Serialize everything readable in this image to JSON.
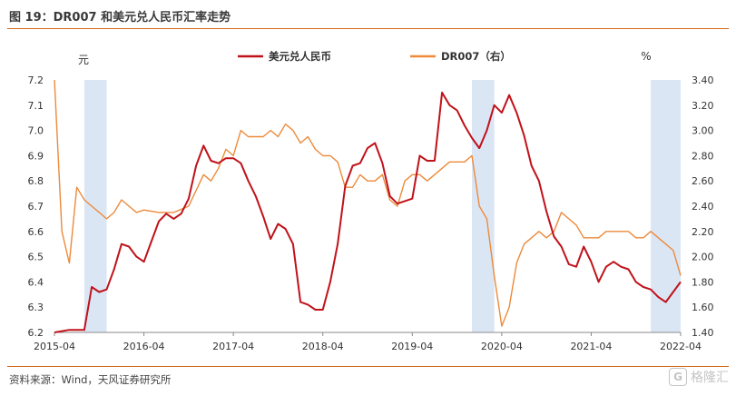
{
  "header": {
    "title": "图 19：DR007 和美元兑人民币汇率走势"
  },
  "footer": {
    "source": "资料来源：Wind，天风证券研究所",
    "watermark_text": "格隆汇",
    "watermark_badge": "G"
  },
  "chart_data": {
    "type": "line",
    "title": "",
    "left_unit": "元",
    "right_unit": "%",
    "ylim": [
      6.2,
      7.2
    ],
    "ylim_right": [
      1.4,
      3.4
    ],
    "yticks": [
      "7.2",
      "7.1",
      "7.0",
      "6.9",
      "6.8",
      "6.7",
      "6.6",
      "6.5",
      "6.4",
      "6.3",
      "6.2"
    ],
    "yticks_right": [
      "3.40",
      "3.20",
      "3.00",
      "2.80",
      "2.60",
      "2.40",
      "2.20",
      "2.00",
      "1.80",
      "1.60",
      "1.40"
    ],
    "x_ticks": [
      "2015-04",
      "2016-04",
      "2017-04",
      "2018-04",
      "2019-04",
      "2020-04",
      "2021-04",
      "2022-04"
    ],
    "x_range": [
      "2015-04",
      "2022-04"
    ],
    "shaded_periods": [
      [
        "2015-08",
        "2015-11"
      ],
      [
        "2019-12",
        "2020-03"
      ],
      [
        "2021-12",
        "2022-04"
      ]
    ],
    "legend_position": "top",
    "colors": {
      "usdcny": "#c0121a",
      "dr007": "#ed8a3a",
      "shade": "#dbe6f5",
      "rule": "#d46a1c"
    },
    "series": [
      {
        "name": "美元兑人民币",
        "axis": "left",
        "points": [
          [
            "2015-04",
            6.2
          ],
          [
            "2015-06",
            6.21
          ],
          [
            "2015-07",
            6.21
          ],
          [
            "2015-08",
            6.21
          ],
          [
            "2015-09",
            6.38
          ],
          [
            "2015-10",
            6.36
          ],
          [
            "2015-11",
            6.37
          ],
          [
            "2015-12",
            6.45
          ],
          [
            "2016-01",
            6.55
          ],
          [
            "2016-02",
            6.54
          ],
          [
            "2016-03",
            6.5
          ],
          [
            "2016-04",
            6.48
          ],
          [
            "2016-05",
            6.56
          ],
          [
            "2016-06",
            6.64
          ],
          [
            "2016-07",
            6.67
          ],
          [
            "2016-08",
            6.65
          ],
          [
            "2016-09",
            6.67
          ],
          [
            "2016-10",
            6.73
          ],
          [
            "2016-11",
            6.86
          ],
          [
            "2016-12",
            6.94
          ],
          [
            "2017-01",
            6.88
          ],
          [
            "2017-02",
            6.87
          ],
          [
            "2017-03",
            6.89
          ],
          [
            "2017-04",
            6.89
          ],
          [
            "2017-05",
            6.87
          ],
          [
            "2017-06",
            6.8
          ],
          [
            "2017-07",
            6.74
          ],
          [
            "2017-08",
            6.66
          ],
          [
            "2017-09",
            6.57
          ],
          [
            "2017-10",
            6.63
          ],
          [
            "2017-11",
            6.61
          ],
          [
            "2017-12",
            6.55
          ],
          [
            "2018-01",
            6.32
          ],
          [
            "2018-02",
            6.31
          ],
          [
            "2018-03",
            6.29
          ],
          [
            "2018-04",
            6.29
          ],
          [
            "2018-05",
            6.4
          ],
          [
            "2018-06",
            6.55
          ],
          [
            "2018-07",
            6.78
          ],
          [
            "2018-08",
            6.86
          ],
          [
            "2018-09",
            6.87
          ],
          [
            "2018-10",
            6.93
          ],
          [
            "2018-11",
            6.95
          ],
          [
            "2018-12",
            6.87
          ],
          [
            "2019-01",
            6.74
          ],
          [
            "2019-02",
            6.71
          ],
          [
            "2019-03",
            6.72
          ],
          [
            "2019-04",
            6.73
          ],
          [
            "2019-05",
            6.9
          ],
          [
            "2019-06",
            6.88
          ],
          [
            "2019-07",
            6.88
          ],
          [
            "2019-08",
            7.15
          ],
          [
            "2019-09",
            7.1
          ],
          [
            "2019-10",
            7.08
          ],
          [
            "2019-11",
            7.02
          ],
          [
            "2019-12",
            6.97
          ],
          [
            "2020-01",
            6.93
          ],
          [
            "2020-02",
            7.0
          ],
          [
            "2020-03",
            7.1
          ],
          [
            "2020-04",
            7.07
          ],
          [
            "2020-05",
            7.14
          ],
          [
            "2020-06",
            7.07
          ],
          [
            "2020-07",
            6.98
          ],
          [
            "2020-08",
            6.86
          ],
          [
            "2020-09",
            6.8
          ],
          [
            "2020-10",
            6.68
          ],
          [
            "2020-11",
            6.58
          ],
          [
            "2020-12",
            6.54
          ],
          [
            "2021-01",
            6.47
          ],
          [
            "2021-02",
            6.46
          ],
          [
            "2021-03",
            6.54
          ],
          [
            "2021-04",
            6.48
          ],
          [
            "2021-05",
            6.4
          ],
          [
            "2021-06",
            6.46
          ],
          [
            "2021-07",
            6.48
          ],
          [
            "2021-08",
            6.46
          ],
          [
            "2021-09",
            6.45
          ],
          [
            "2021-10",
            6.4
          ],
          [
            "2021-11",
            6.38
          ],
          [
            "2021-12",
            6.37
          ],
          [
            "2022-01",
            6.34
          ],
          [
            "2022-02",
            6.32
          ],
          [
            "2022-03",
            6.36
          ],
          [
            "2022-04",
            6.4
          ]
        ]
      },
      {
        "name": "DR007（右）",
        "axis": "right",
        "points": [
          [
            "2015-04",
            3.4
          ],
          [
            "2015-05",
            2.2
          ],
          [
            "2015-06",
            1.95
          ],
          [
            "2015-07",
            2.55
          ],
          [
            "2015-08",
            2.45
          ],
          [
            "2015-09",
            2.4
          ],
          [
            "2015-10",
            2.35
          ],
          [
            "2015-11",
            2.3
          ],
          [
            "2015-12",
            2.35
          ],
          [
            "2016-01",
            2.45
          ],
          [
            "2016-02",
            2.4
          ],
          [
            "2016-03",
            2.35
          ],
          [
            "2016-04",
            2.37
          ],
          [
            "2016-06",
            2.35
          ],
          [
            "2016-08",
            2.35
          ],
          [
            "2016-10",
            2.4
          ],
          [
            "2016-12",
            2.65
          ],
          [
            "2017-01",
            2.6
          ],
          [
            "2017-02",
            2.7
          ],
          [
            "2017-03",
            2.85
          ],
          [
            "2017-04",
            2.8
          ],
          [
            "2017-05",
            3.0
          ],
          [
            "2017-06",
            2.95
          ],
          [
            "2017-07",
            2.95
          ],
          [
            "2017-08",
            2.95
          ],
          [
            "2017-09",
            3.0
          ],
          [
            "2017-10",
            2.95
          ],
          [
            "2017-11",
            3.05
          ],
          [
            "2017-12",
            3.0
          ],
          [
            "2018-01",
            2.9
          ],
          [
            "2018-02",
            2.95
          ],
          [
            "2018-03",
            2.85
          ],
          [
            "2018-04",
            2.8
          ],
          [
            "2018-05",
            2.8
          ],
          [
            "2018-06",
            2.75
          ],
          [
            "2018-07",
            2.55
          ],
          [
            "2018-08",
            2.55
          ],
          [
            "2018-09",
            2.65
          ],
          [
            "2018-10",
            2.6
          ],
          [
            "2018-11",
            2.6
          ],
          [
            "2018-12",
            2.65
          ],
          [
            "2019-01",
            2.45
          ],
          [
            "2019-02",
            2.4
          ],
          [
            "2019-03",
            2.6
          ],
          [
            "2019-04",
            2.65
          ],
          [
            "2019-05",
            2.65
          ],
          [
            "2019-06",
            2.6
          ],
          [
            "2019-07",
            2.65
          ],
          [
            "2019-08",
            2.7
          ],
          [
            "2019-09",
            2.75
          ],
          [
            "2019-10",
            2.75
          ],
          [
            "2019-11",
            2.75
          ],
          [
            "2019-12",
            2.8
          ],
          [
            "2020-01",
            2.4
          ],
          [
            "2020-02",
            2.3
          ],
          [
            "2020-03",
            1.85
          ],
          [
            "2020-04",
            1.45
          ],
          [
            "2020-05",
            1.6
          ],
          [
            "2020-06",
            1.95
          ],
          [
            "2020-07",
            2.1
          ],
          [
            "2020-08",
            2.15
          ],
          [
            "2020-09",
            2.2
          ],
          [
            "2020-10",
            2.15
          ],
          [
            "2020-11",
            2.2
          ],
          [
            "2020-12",
            2.35
          ],
          [
            "2021-01",
            2.3
          ],
          [
            "2021-02",
            2.25
          ],
          [
            "2021-03",
            2.15
          ],
          [
            "2021-04",
            2.15
          ],
          [
            "2021-05",
            2.15
          ],
          [
            "2021-06",
            2.2
          ],
          [
            "2021-07",
            2.2
          ],
          [
            "2021-08",
            2.2
          ],
          [
            "2021-09",
            2.2
          ],
          [
            "2021-10",
            2.15
          ],
          [
            "2021-11",
            2.15
          ],
          [
            "2021-12",
            2.2
          ],
          [
            "2022-01",
            2.15
          ],
          [
            "2022-02",
            2.1
          ],
          [
            "2022-03",
            2.05
          ],
          [
            "2022-04",
            1.85
          ]
        ]
      }
    ]
  }
}
